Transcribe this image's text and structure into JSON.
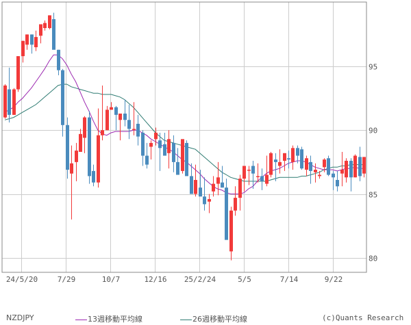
{
  "symbol": "NZDJPY",
  "legend": {
    "ma13": {
      "label": "13週移動平均線",
      "color": "#9b27b0"
    },
    "ma26": {
      "label": "26週移動平均線",
      "color": "#2e7b72"
    }
  },
  "copyright": "(c)Quants Research",
  "colors": {
    "up": "#f23a3a",
    "down": "#4a8bbd",
    "grid": "#cccccc",
    "frame": "#888888"
  },
  "chart_data": {
    "type": "candlestick",
    "title": "NZDJPY",
    "xlabel": "",
    "ylabel": "",
    "ylim": [
      79,
      99.5
    ],
    "y_ticks": [
      80,
      85,
      90,
      95
    ],
    "x_tick_labels": [
      "24/5/20",
      "7/29",
      "10/7",
      "12/16",
      "25/2/24",
      "5/5",
      "7/14",
      "9/22"
    ],
    "grid": true,
    "legend_position": "bottom",
    "series": [
      {
        "name": "13週移動平均線",
        "type": "line"
      },
      {
        "name": "26週移動平均線",
        "type": "line"
      }
    ],
    "candles": [
      {
        "o": 91.0,
        "h": 93.6,
        "l": 90.9,
        "c": 93.5
      },
      {
        "o": 93.2,
        "h": 94.9,
        "l": 90.6,
        "c": 91.2
      },
      {
        "o": 91.2,
        "h": 93.3,
        "l": 91.2,
        "c": 93.2
      },
      {
        "o": 93.2,
        "h": 95.8,
        "l": 93.0,
        "c": 95.8
      },
      {
        "o": 95.8,
        "h": 97.0,
        "l": 95.3,
        "c": 97.0
      },
      {
        "o": 96.7,
        "h": 97.5,
        "l": 96.3,
        "c": 97.5
      },
      {
        "o": 97.5,
        "h": 97.5,
        "l": 96.0,
        "c": 96.7
      },
      {
        "o": 96.5,
        "h": 97.8,
        "l": 96.2,
        "c": 97.3
      },
      {
        "o": 97.4,
        "h": 98.0,
        "l": 96.8,
        "c": 98.3
      },
      {
        "o": 98.0,
        "h": 98.6,
        "l": 97.8,
        "c": 98.4
      },
      {
        "o": 98.0,
        "h": 99.0,
        "l": 97.9,
        "c": 99.0
      },
      {
        "o": 98.7,
        "h": 99.2,
        "l": 96.8,
        "c": 96.3
      },
      {
        "o": 96.3,
        "h": 96.3,
        "l": 94.3,
        "c": 94.7
      },
      {
        "o": 94.7,
        "h": 94.8,
        "l": 89.5,
        "c": 90.4
      },
      {
        "o": 90.4,
        "h": 91.0,
        "l": 86.2,
        "c": 86.9
      },
      {
        "o": 86.6,
        "h": 88.8,
        "l": 83.0,
        "c": 87.4
      },
      {
        "o": 87.5,
        "h": 89.0,
        "l": 86.0,
        "c": 88.4
      },
      {
        "o": 88.3,
        "h": 90.1,
        "l": 88.3,
        "c": 89.7
      },
      {
        "o": 89.4,
        "h": 91.1,
        "l": 88.2,
        "c": 91.0
      },
      {
        "o": 91.0,
        "h": 91.5,
        "l": 85.8,
        "c": 86.4
      },
      {
        "o": 86.8,
        "h": 87.3,
        "l": 85.6,
        "c": 85.9
      },
      {
        "o": 85.9,
        "h": 91.7,
        "l": 85.5,
        "c": 89.6
      },
      {
        "o": 89.6,
        "h": 93.5,
        "l": 89.2,
        "c": 90.0
      },
      {
        "o": 90.0,
        "h": 91.9,
        "l": 90.0,
        "c": 91.6
      },
      {
        "o": 91.6,
        "h": 92.2,
        "l": 91.6,
        "c": 91.8
      },
      {
        "o": 91.8,
        "h": 91.9,
        "l": 90.0,
        "c": 91.2
      },
      {
        "o": 90.8,
        "h": 91.2,
        "l": 89.2,
        "c": 91.3
      },
      {
        "o": 91.3,
        "h": 92.4,
        "l": 90.3,
        "c": 90.8
      },
      {
        "o": 90.8,
        "h": 92.0,
        "l": 89.3,
        "c": 90.1
      },
      {
        "o": 90.1,
        "h": 92.2,
        "l": 89.6,
        "c": 90.1
      },
      {
        "o": 90.5,
        "h": 91.2,
        "l": 88.8,
        "c": 89.5
      },
      {
        "o": 89.8,
        "h": 90.0,
        "l": 87.2,
        "c": 88.0
      },
      {
        "o": 88.0,
        "h": 89.0,
        "l": 87.0,
        "c": 87.3
      },
      {
        "o": 88.7,
        "h": 89.2,
        "l": 87.7,
        "c": 89.0
      },
      {
        "o": 89.3,
        "h": 90.2,
        "l": 88.8,
        "c": 89.8
      },
      {
        "o": 89.2,
        "h": 89.8,
        "l": 86.8,
        "c": 88.6
      },
      {
        "o": 88.9,
        "h": 89.8,
        "l": 88.4,
        "c": 88.0
      },
      {
        "o": 88.2,
        "h": 90.0,
        "l": 87.0,
        "c": 89.3
      },
      {
        "o": 89.0,
        "h": 89.6,
        "l": 86.7,
        "c": 87.5
      },
      {
        "o": 87.5,
        "h": 88.6,
        "l": 86.6,
        "c": 86.5
      },
      {
        "o": 86.8,
        "h": 89.2,
        "l": 86.6,
        "c": 89.3
      },
      {
        "o": 89.0,
        "h": 89.2,
        "l": 86.5,
        "c": 86.4
      },
      {
        "o": 86.4,
        "h": 87.4,
        "l": 85.5,
        "c": 85.0
      },
      {
        "o": 85.0,
        "h": 87.3,
        "l": 84.8,
        "c": 86.1
      },
      {
        "o": 85.5,
        "h": 86.9,
        "l": 85.0,
        "c": 84.8
      },
      {
        "o": 84.8,
        "h": 86.3,
        "l": 83.7,
        "c": 84.2
      },
      {
        "o": 84.4,
        "h": 85.0,
        "l": 83.5,
        "c": 84.6
      },
      {
        "o": 85.2,
        "h": 86.4,
        "l": 84.8,
        "c": 85.8
      },
      {
        "o": 85.8,
        "h": 87.5,
        "l": 84.9,
        "c": 86.3
      },
      {
        "o": 85.9,
        "h": 87.2,
        "l": 85.5,
        "c": 85.5
      },
      {
        "o": 85.5,
        "h": 86.2,
        "l": 82.0,
        "c": 81.4
      },
      {
        "o": 80.5,
        "h": 84.0,
        "l": 79.8,
        "c": 83.7
      },
      {
        "o": 83.7,
        "h": 85.6,
        "l": 83.3,
        "c": 84.7
      },
      {
        "o": 84.7,
        "h": 86.5,
        "l": 83.7,
        "c": 86.2
      },
      {
        "o": 86.2,
        "h": 87.2,
        "l": 85.2,
        "c": 87.2
      },
      {
        "o": 86.9,
        "h": 87.2,
        "l": 85.7,
        "c": 86.9
      },
      {
        "o": 87.2,
        "h": 87.6,
        "l": 85.4,
        "c": 86.6
      },
      {
        "o": 86.4,
        "h": 87.4,
        "l": 85.9,
        "c": 86.4
      },
      {
        "o": 86.4,
        "h": 87.0,
        "l": 85.3,
        "c": 86.0
      },
      {
        "o": 85.8,
        "h": 88.0,
        "l": 85.6,
        "c": 86.5
      },
      {
        "o": 86.5,
        "h": 88.3,
        "l": 86.3,
        "c": 88.2
      },
      {
        "o": 87.7,
        "h": 88.2,
        "l": 86.0,
        "c": 87.5
      },
      {
        "o": 87.2,
        "h": 88.5,
        "l": 86.6,
        "c": 87.5
      },
      {
        "o": 87.6,
        "h": 88.2,
        "l": 86.8,
        "c": 88.2
      },
      {
        "o": 87.8,
        "h": 88.4,
        "l": 87.0,
        "c": 87.7
      },
      {
        "o": 87.5,
        "h": 88.8,
        "l": 86.9,
        "c": 88.6
      },
      {
        "o": 88.6,
        "h": 88.8,
        "l": 87.4,
        "c": 88.0
      },
      {
        "o": 88.5,
        "h": 88.7,
        "l": 86.9,
        "c": 87.0
      },
      {
        "o": 86.9,
        "h": 88.0,
        "l": 86.4,
        "c": 87.8
      },
      {
        "o": 87.5,
        "h": 88.0,
        "l": 85.8,
        "c": 86.8
      },
      {
        "o": 86.7,
        "h": 87.4,
        "l": 85.9,
        "c": 86.9
      },
      {
        "o": 86.4,
        "h": 86.8,
        "l": 86.2,
        "c": 86.5
      },
      {
        "o": 87.1,
        "h": 87.8,
        "l": 86.7,
        "c": 87.7
      },
      {
        "o": 87.8,
        "h": 88.0,
        "l": 86.4,
        "c": 86.5
      },
      {
        "o": 86.6,
        "h": 86.8,
        "l": 85.3,
        "c": 86.3
      },
      {
        "o": 86.1,
        "h": 86.8,
        "l": 85.2,
        "c": 85.6
      },
      {
        "o": 86.6,
        "h": 88.3,
        "l": 85.6,
        "c": 86.9
      },
      {
        "o": 86.3,
        "h": 87.8,
        "l": 85.9,
        "c": 87.6
      },
      {
        "o": 87.6,
        "h": 87.8,
        "l": 85.2,
        "c": 86.3
      },
      {
        "o": 86.3,
        "h": 88.1,
        "l": 86.3,
        "c": 88.0
      },
      {
        "o": 87.9,
        "h": 88.7,
        "l": 86.0,
        "c": 86.4
      },
      {
        "o": 86.6,
        "h": 87.9,
        "l": 86.3,
        "c": 87.9
      }
    ],
    "ma13": [
      91.4,
      91.6,
      91.8,
      92.2,
      92.5,
      92.9,
      93.3,
      93.8,
      94.3,
      94.8,
      95.4,
      95.9,
      95.9,
      95.6,
      95.1,
      94.4,
      93.8,
      93.0,
      92.2,
      91.5,
      90.7,
      90.0,
      89.7,
      89.6,
      89.8,
      89.9,
      89.9,
      89.9,
      89.9,
      90.0,
      90.0,
      89.8,
      89.6,
      89.3,
      89.1,
      88.9,
      88.7,
      88.5,
      88.3,
      88.0,
      87.7,
      87.5,
      87.2,
      86.9,
      86.6,
      86.2,
      85.9,
      85.6,
      85.4,
      85.3,
      85.1,
      85.0,
      85.0,
      85.0,
      85.1,
      85.4,
      85.6,
      86.0,
      86.3,
      86.6,
      86.8,
      86.9,
      87.0,
      87.2,
      87.4,
      87.5,
      87.6,
      87.6,
      87.5,
      87.3,
      87.1,
      87.0,
      86.9,
      86.9,
      86.9,
      86.8,
      86.9,
      87.0,
      87.0,
      87.1,
      87.0,
      87.0
    ],
    "ma26": [
      90.8,
      90.9,
      91.0,
      91.2,
      91.4,
      91.6,
      91.8,
      92.0,
      92.3,
      92.6,
      92.9,
      93.2,
      93.5,
      93.6,
      93.6,
      93.4,
      93.3,
      93.2,
      93.1,
      93.0,
      92.9,
      92.9,
      92.8,
      92.8,
      92.8,
      92.7,
      92.6,
      92.4,
      92.1,
      91.8,
      91.4,
      91.0,
      90.6,
      90.2,
      89.8,
      89.5,
      89.2,
      89.1,
      89.0,
      88.9,
      88.8,
      88.7,
      88.6,
      88.5,
      88.2,
      87.9,
      87.6,
      87.3,
      87.0,
      86.7,
      86.5,
      86.3,
      86.2,
      86.1,
      86.0,
      86.0,
      86.0,
      86.0,
      86.0,
      86.0,
      86.1,
      86.2,
      86.3,
      86.3,
      86.3,
      86.3,
      86.3,
      86.4,
      86.4,
      86.5,
      86.6,
      86.7,
      86.9,
      87.0,
      87.1,
      87.1,
      87.2,
      87.2,
      87.3,
      87.3,
      87.3,
      87.3
    ]
  }
}
